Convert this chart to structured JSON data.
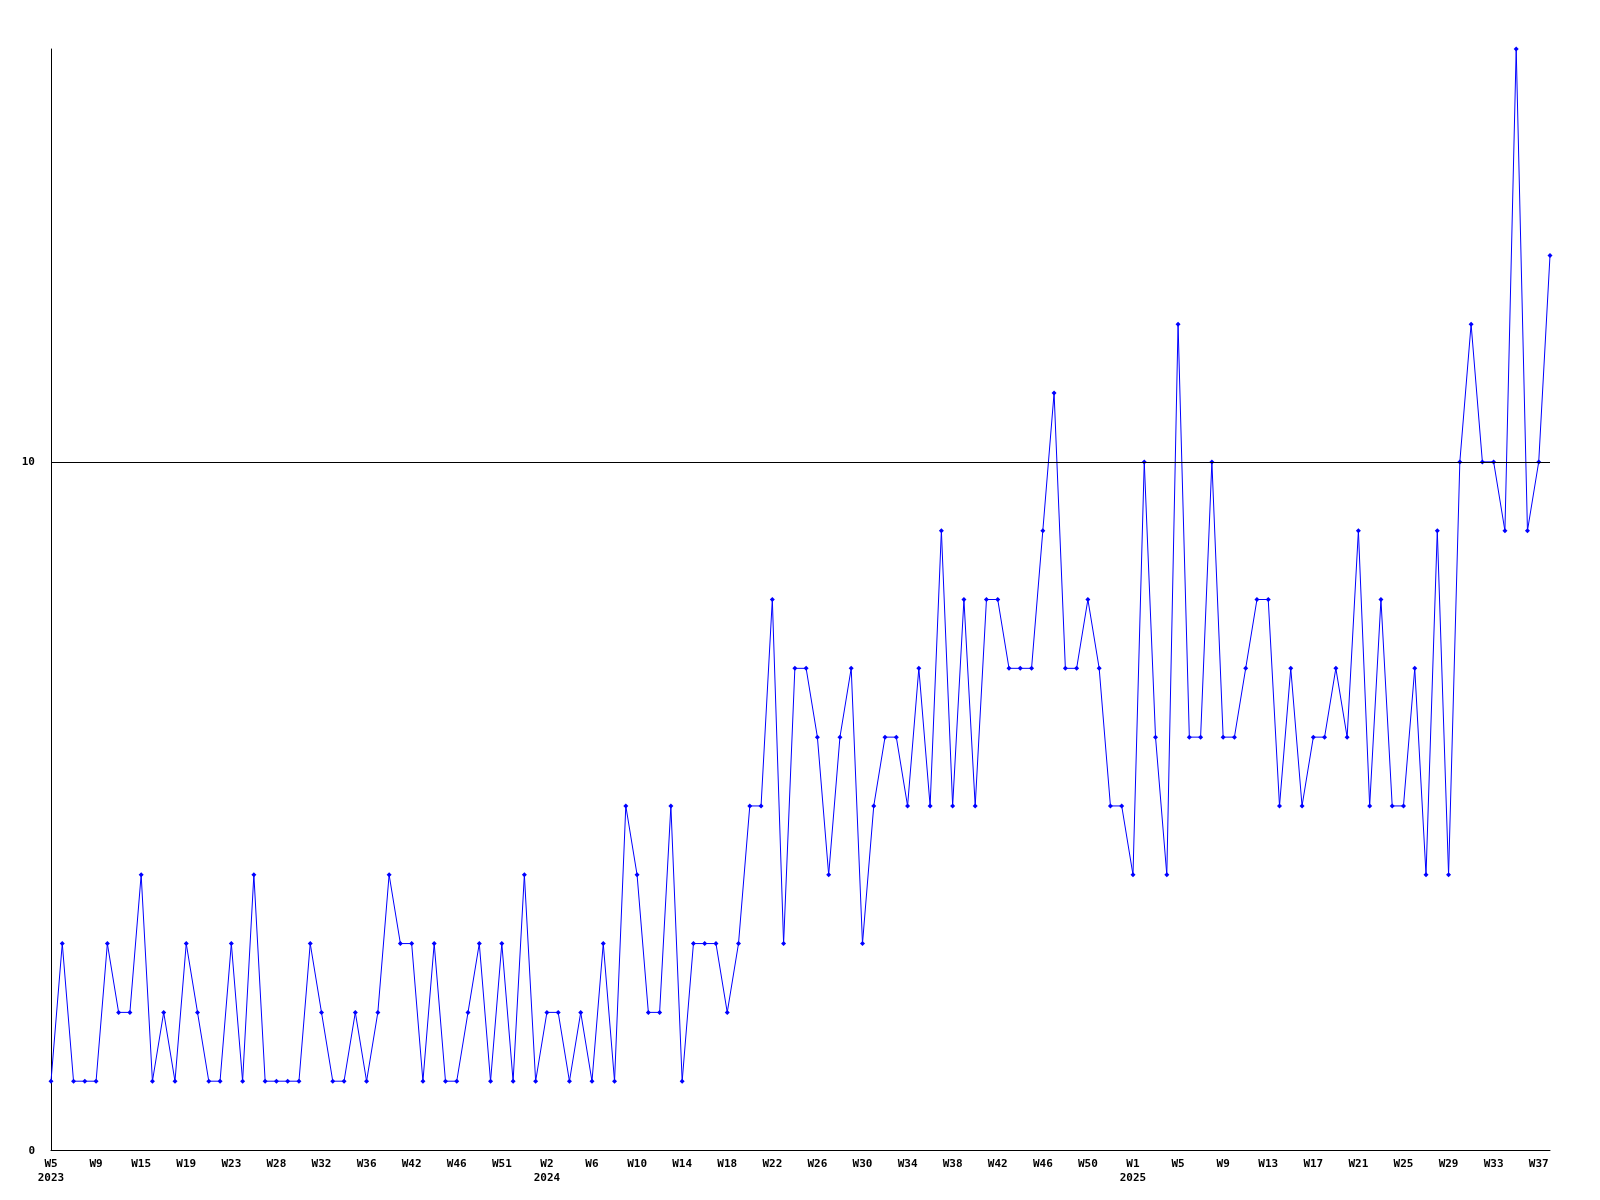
{
  "chart_data": {
    "type": "line",
    "categories": [
      "W5\n2023",
      null,
      null,
      null,
      "W9",
      null,
      null,
      null,
      "W15",
      null,
      null,
      null,
      "W19",
      null,
      null,
      null,
      "W23",
      null,
      null,
      null,
      "W28",
      null,
      null,
      null,
      "W32",
      null,
      null,
      null,
      "W36",
      null,
      null,
      null,
      "W42",
      null,
      null,
      null,
      "W46",
      null,
      null,
      null,
      "W51",
      null,
      null,
      null,
      "W2\n2024",
      null,
      null,
      null,
      "W6",
      null,
      null,
      null,
      "W10",
      null,
      null,
      null,
      "W14",
      null,
      null,
      null,
      "W18",
      null,
      null,
      null,
      "W22",
      null,
      null,
      null,
      "W26",
      null,
      null,
      null,
      "W30",
      null,
      null,
      null,
      "W34",
      null,
      null,
      null,
      "W38",
      null,
      null,
      null,
      "W42",
      null,
      null,
      null,
      "W46",
      null,
      null,
      null,
      "W50",
      null,
      null,
      null,
      "W1\n2025",
      null,
      null,
      null,
      "W5",
      null,
      null,
      null,
      "W9",
      null,
      null,
      null,
      "W13",
      null,
      null,
      null,
      "W17",
      null,
      null,
      null,
      "W21",
      null,
      null,
      null,
      "W25",
      null,
      null,
      null,
      "W29",
      null,
      null,
      null,
      "W33",
      null,
      null,
      null,
      "W37",
      null
    ],
    "series": [
      {
        "color": "#0000ff",
        "values": [
          1,
          3,
          1,
          1,
          1,
          3,
          2,
          2,
          4,
          1,
          2,
          1,
          3,
          2,
          1,
          1,
          3,
          1,
          4,
          1,
          1,
          1,
          1,
          3,
          2,
          1,
          1,
          2,
          1,
          2,
          4,
          3,
          3,
          1,
          3,
          1,
          1,
          2,
          3,
          1,
          3,
          1,
          4,
          1,
          2,
          2,
          1,
          2,
          1,
          3,
          1,
          5,
          4,
          2,
          2,
          5,
          1,
          3,
          3,
          3,
          2,
          3,
          5,
          5,
          8,
          3,
          7,
          7,
          6,
          4,
          6,
          7,
          3,
          5,
          6,
          6,
          5,
          7,
          5,
          9,
          5,
          8,
          5,
          8,
          8,
          7,
          7,
          7,
          9,
          11,
          7,
          7,
          8,
          7,
          5,
          5,
          4,
          10,
          6,
          4,
          12,
          6,
          6,
          10,
          6,
          6,
          7,
          8,
          8,
          5,
          7,
          5,
          6,
          6,
          7,
          6,
          9,
          5,
          8,
          5,
          5,
          7,
          4,
          9,
          4,
          10,
          12,
          10,
          10,
          9,
          16,
          9,
          10,
          13
        ]
      }
    ],
    "ylim": [
      0,
      16
    ],
    "yticks": [
      0,
      10
    ],
    "grid": "y",
    "marker": "diamond",
    "line_style": "solid"
  }
}
